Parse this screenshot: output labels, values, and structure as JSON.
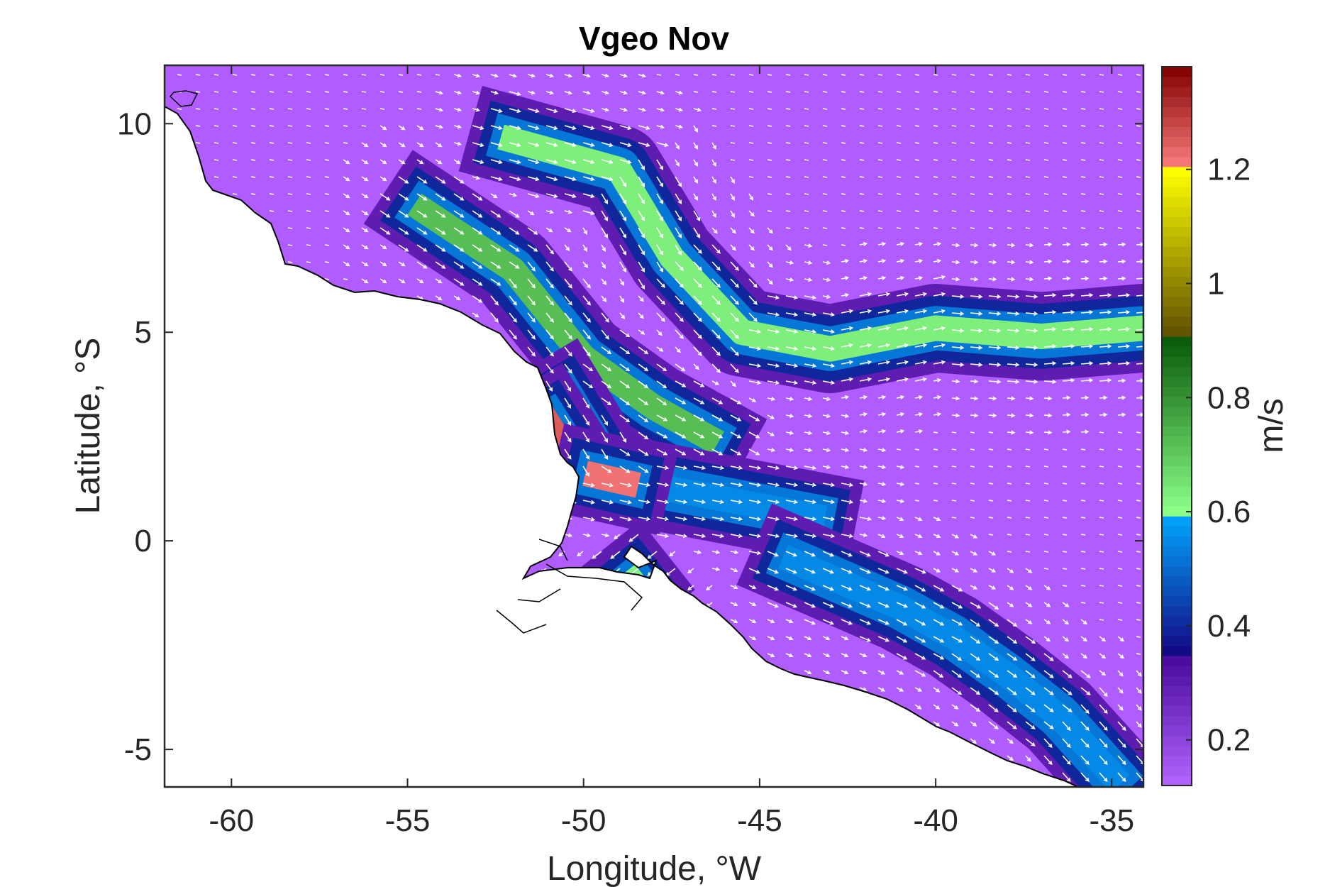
{
  "chart_data": {
    "type": "heatmap",
    "title": "Vgeo Nov",
    "xlabel": "Longitude, °W",
    "ylabel": "Latitude, °S",
    "xlim": [
      -61.9,
      -34.1
    ],
    "ylim": [
      -5.9,
      11.4
    ],
    "xticks": [
      -60,
      -55,
      -50,
      -45,
      -40,
      -35
    ],
    "yticks": [
      -5,
      0,
      5,
      10
    ],
    "colorbar": {
      "label": "m/s",
      "range": [
        0.12,
        1.38
      ],
      "ticks": [
        0.2,
        0.4,
        0.6,
        0.8,
        1,
        1.2
      ],
      "bands": [
        {
          "from": 0.12,
          "to": 0.34,
          "from_color": "#b266ff",
          "to_color": "#4b0b9e"
        },
        {
          "from": 0.34,
          "to": 0.6,
          "from_color": "#14007d",
          "to_color": "#00aaff"
        },
        {
          "from": 0.6,
          "to": 0.9,
          "from_color": "#8bff88",
          "to_color": "#0a5c0a"
        },
        {
          "from": 0.9,
          "to": 1.2,
          "from_color": "#5a4a00",
          "to_color": "#ffff00"
        },
        {
          "from": 1.2,
          "to": 1.38,
          "from_color": "#ff8080",
          "to_color": "#800000"
        }
      ]
    },
    "currents": [
      {
        "points": [
          [
            -52,
            9.6
          ],
          [
            -49,
            8.9
          ],
          [
            -47.5,
            6.8
          ],
          [
            -45.5,
            5
          ],
          [
            -43,
            4.6
          ],
          [
            -40,
            5.1
          ],
          [
            -37,
            4.9
          ],
          [
            -34.1,
            5.1
          ]
        ],
        "speed": 0.63
      },
      {
        "points": [
          [
            -54.5,
            7.9
          ],
          [
            -52,
            6.5
          ],
          [
            -50,
            4.4
          ],
          [
            -48,
            3.2
          ],
          [
            -46.5,
            2.5
          ]
        ],
        "speed": 0.72
      },
      {
        "points": [
          [
            -50.6,
            3.4
          ],
          [
            -49.6,
            2.0
          ],
          [
            -48.5,
            1.4
          ],
          [
            -46,
            1.0
          ],
          [
            -43.5,
            0.6
          ]
        ],
        "speed": 0.55
      },
      {
        "points": [
          [
            -44,
            -0.5
          ],
          [
            -41,
            -1.6
          ],
          [
            -39.5,
            -2.3
          ],
          [
            -38,
            -3.2
          ],
          [
            -36.5,
            -4.2
          ],
          [
            -35,
            -5.6
          ]
        ],
        "speed": 0.55
      },
      {
        "points": [
          [
            -51,
            2.8
          ],
          [
            -50.7,
            2.4
          ]
        ],
        "speed": 1.25
      },
      {
        "points": [
          [
            -49.6,
            1.55
          ],
          [
            -48.8,
            1.4
          ]
        ],
        "speed": 1.22
      },
      {
        "points": [
          [
            -48.6,
            -1.0
          ],
          [
            -48.9,
            -1.2
          ]
        ],
        "speed": 0.62
      }
    ],
    "background_speed": 0.15
  }
}
